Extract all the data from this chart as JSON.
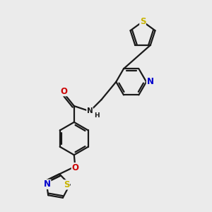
{
  "background_color": "#ebebeb",
  "bond_color": "#1a1a1a",
  "atom_colors": {
    "S": "#c8b400",
    "N": "#0000cc",
    "O": "#cc0000",
    "C": "#1a1a1a"
  },
  "figsize": [
    3.0,
    3.0
  ],
  "dpi": 100
}
